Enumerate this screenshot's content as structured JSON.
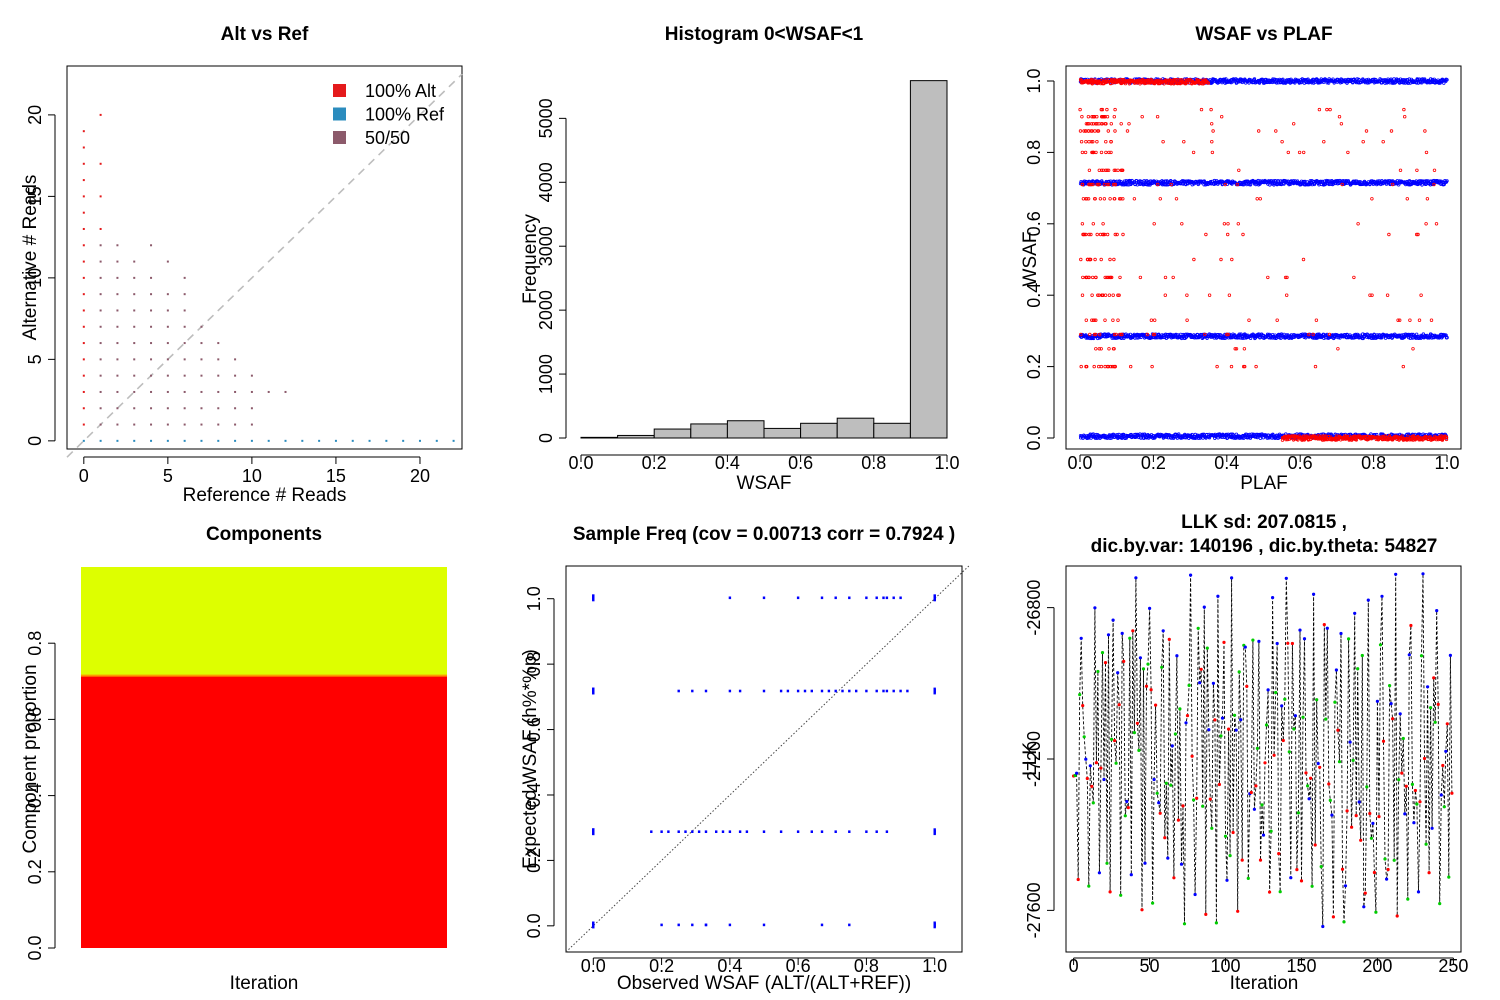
{
  "chart_data": [
    {
      "type": "scatter",
      "title": "Alt vs Ref",
      "xlabel": "Reference # Reads",
      "ylabel": "Alternative # Reads",
      "xlim": [
        -1,
        22.5
      ],
      "ylim": [
        -0.5,
        23
      ],
      "xticks": [
        0,
        5,
        10,
        15,
        20
      ],
      "yticks": [
        0,
        5,
        10,
        15,
        20
      ],
      "diagonal": true,
      "legend_position": "top-right",
      "legend": [
        {
          "label": "100% Alt",
          "color": "#e41a1c"
        },
        {
          "label": "100% Ref",
          "color": "#2b8cbe"
        },
        {
          "label": "50/50",
          "color": "#8c5a6b"
        }
      ],
      "series": [
        {
          "name": "100% Alt",
          "color": "#e41a1c",
          "points": [
            [
              0,
              1
            ],
            [
              0,
              2
            ],
            [
              0,
              3
            ],
            [
              0,
              4
            ],
            [
              0,
              5
            ],
            [
              0,
              6
            ],
            [
              0,
              7
            ],
            [
              0,
              8
            ],
            [
              0,
              9
            ],
            [
              0,
              10
            ],
            [
              0,
              11
            ],
            [
              0,
              12
            ],
            [
              0,
              13
            ],
            [
              0,
              14
            ],
            [
              0,
              15
            ],
            [
              0,
              16
            ],
            [
              0,
              17
            ],
            [
              0,
              18
            ],
            [
              0,
              19
            ],
            [
              1,
              20
            ],
            [
              1,
              17
            ],
            [
              1,
              13
            ],
            [
              1,
              15
            ]
          ]
        },
        {
          "name": "100% Ref",
          "color": "#2b8cbe",
          "points": [
            [
              0,
              0
            ],
            [
              1,
              0
            ],
            [
              2,
              0
            ],
            [
              3,
              0
            ],
            [
              4,
              0
            ],
            [
              5,
              0
            ],
            [
              6,
              0
            ],
            [
              7,
              0
            ],
            [
              8,
              0
            ],
            [
              9,
              0
            ],
            [
              10,
              0
            ],
            [
              11,
              0
            ],
            [
              12,
              0
            ],
            [
              13,
              0
            ],
            [
              14,
              0
            ],
            [
              15,
              0
            ],
            [
              16,
              0
            ],
            [
              17,
              0
            ],
            [
              18,
              0
            ],
            [
              19,
              0
            ],
            [
              20,
              0
            ],
            [
              21,
              0
            ],
            [
              22,
              0
            ]
          ]
        },
        {
          "name": "50/50",
          "color": "#8c5a6b",
          "points": [
            [
              1,
              1
            ],
            [
              1,
              2
            ],
            [
              1,
              3
            ],
            [
              1,
              4
            ],
            [
              1,
              5
            ],
            [
              1,
              6
            ],
            [
              1,
              7
            ],
            [
              1,
              8
            ],
            [
              1,
              9
            ],
            [
              1,
              10
            ],
            [
              1,
              11
            ],
            [
              1,
              12
            ],
            [
              2,
              1
            ],
            [
              2,
              2
            ],
            [
              2,
              3
            ],
            [
              2,
              4
            ],
            [
              2,
              5
            ],
            [
              2,
              6
            ],
            [
              2,
              7
            ],
            [
              2,
              8
            ],
            [
              2,
              9
            ],
            [
              2,
              10
            ],
            [
              2,
              11
            ],
            [
              2,
              12
            ],
            [
              3,
              1
            ],
            [
              3,
              2
            ],
            [
              3,
              3
            ],
            [
              3,
              4
            ],
            [
              3,
              5
            ],
            [
              3,
              6
            ],
            [
              3,
              7
            ],
            [
              3,
              8
            ],
            [
              3,
              9
            ],
            [
              3,
              10
            ],
            [
              3,
              11
            ],
            [
              4,
              1
            ],
            [
              4,
              2
            ],
            [
              4,
              3
            ],
            [
              4,
              4
            ],
            [
              4,
              5
            ],
            [
              4,
              6
            ],
            [
              4,
              7
            ],
            [
              4,
              8
            ],
            [
              4,
              9
            ],
            [
              4,
              10
            ],
            [
              4,
              12
            ],
            [
              5,
              1
            ],
            [
              5,
              2
            ],
            [
              5,
              3
            ],
            [
              5,
              4
            ],
            [
              5,
              5
            ],
            [
              5,
              6
            ],
            [
              5,
              7
            ],
            [
              5,
              8
            ],
            [
              5,
              9
            ],
            [
              5,
              11
            ],
            [
              6,
              1
            ],
            [
              6,
              2
            ],
            [
              6,
              3
            ],
            [
              6,
              4
            ],
            [
              6,
              5
            ],
            [
              6,
              6
            ],
            [
              6,
              7
            ],
            [
              6,
              8
            ],
            [
              6,
              9
            ],
            [
              6,
              10
            ],
            [
              7,
              1
            ],
            [
              7,
              2
            ],
            [
              7,
              3
            ],
            [
              7,
              4
            ],
            [
              7,
              5
            ],
            [
              7,
              6
            ],
            [
              7,
              7
            ],
            [
              8,
              1
            ],
            [
              8,
              2
            ],
            [
              8,
              3
            ],
            [
              8,
              4
            ],
            [
              8,
              5
            ],
            [
              8,
              6
            ],
            [
              9,
              1
            ],
            [
              9,
              2
            ],
            [
              9,
              3
            ],
            [
              9,
              4
            ],
            [
              9,
              5
            ],
            [
              10,
              1
            ],
            [
              10,
              2
            ],
            [
              10,
              3
            ],
            [
              10,
              4
            ],
            [
              11,
              3
            ],
            [
              12,
              3
            ]
          ]
        }
      ]
    },
    {
      "type": "bar",
      "title": "Histogram 0<WSAF<1",
      "xlabel": "WSAF",
      "ylabel": "Frequency",
      "xlim": [
        0,
        1
      ],
      "ylim": [
        0,
        5600
      ],
      "xticks": [
        0.0,
        0.2,
        0.4,
        0.6,
        0.8,
        1.0
      ],
      "yticks": [
        0,
        1000,
        2000,
        3000,
        4000,
        5000
      ],
      "bin_edges": [
        0.0,
        0.1,
        0.2,
        0.3,
        0.4,
        0.5,
        0.6,
        0.7,
        0.8,
        0.9,
        1.0
      ],
      "values": [
        10,
        40,
        140,
        220,
        270,
        150,
        230,
        310,
        230,
        5590
      ],
      "bar_color": "#bebebe"
    },
    {
      "type": "scatter",
      "title": "WSAF vs PLAF",
      "xlabel": "PLAF",
      "ylabel": "WSAF",
      "xlim": [
        0,
        1
      ],
      "ylim": [
        0,
        1
      ],
      "xticks": [
        0.0,
        0.2,
        0.4,
        0.6,
        0.8,
        1.0
      ],
      "yticks": [
        0.0,
        0.2,
        0.4,
        0.6,
        0.8,
        1.0
      ],
      "bands": [
        {
          "y": 1.0,
          "color": "#0000ff",
          "from": 0.0,
          "to": 1.0
        },
        {
          "y": 0.715,
          "color": "#0000ff",
          "from": 0.0,
          "to": 1.0
        },
        {
          "y": 0.285,
          "color": "#0000ff",
          "from": 0.0,
          "to": 1.0
        },
        {
          "y": 0.005,
          "color": "#0000ff",
          "from": 0.0,
          "to": 1.0
        },
        {
          "y": 0.998,
          "color": "#ff0000",
          "from": 0.0,
          "to": 0.35
        },
        {
          "y": 0.0,
          "color": "#ff0000",
          "from": 0.55,
          "to": 1.0
        }
      ],
      "red_levels": [
        0.92,
        0.9,
        0.88,
        0.86,
        0.83,
        0.8,
        0.75,
        0.71,
        0.67,
        0.6,
        0.57,
        0.5,
        0.45,
        0.4,
        0.33,
        0.29,
        0.25,
        0.2
      ],
      "colors": {
        "observed": "#ff0000",
        "expected": "#0000ff"
      }
    },
    {
      "type": "area",
      "title": "Components",
      "xlabel": "Iteration",
      "ylabel": "Component proportion",
      "ylim": [
        0,
        1
      ],
      "yticks": [
        0.0,
        0.2,
        0.4,
        0.6,
        0.8
      ],
      "components": [
        {
          "proportion": 0.715,
          "color": "#ff0000"
        },
        {
          "proportion": 0.285,
          "color": "#ddff00"
        }
      ]
    },
    {
      "type": "scatter",
      "title": "Sample Freq (cov = 0.00713 corr =  0.7924 )",
      "xlabel": "Observed WSAF (ALT/(ALT+REF))",
      "ylabel": "Expected WSAF (h%*%p)",
      "xlim": [
        -0.08,
        1.08
      ],
      "ylim": [
        -0.08,
        1.1
      ],
      "xticks": [
        0.0,
        0.2,
        0.4,
        0.6,
        0.8,
        1.0
      ],
      "yticks": [
        0.0,
        0.2,
        0.4,
        0.6,
        0.8,
        1.0
      ],
      "diagonal": true,
      "color": "#0000ff",
      "rows": [
        {
          "y": 1.0,
          "x": [
            0.0,
            0.0,
            0.4,
            0.5,
            0.6,
            0.67,
            0.71,
            0.75,
            0.8,
            0.83,
            0.85,
            0.86,
            0.88,
            0.9,
            1.0,
            1.0
          ]
        },
        {
          "y": 0.715,
          "x": [
            0.0,
            0.0,
            0.25,
            0.29,
            0.33,
            0.4,
            0.43,
            0.5,
            0.55,
            0.57,
            0.6,
            0.62,
            0.64,
            0.67,
            0.69,
            0.71,
            0.73,
            0.75,
            0.77,
            0.8,
            0.83,
            0.85,
            0.86,
            0.88,
            0.9,
            0.92,
            1.0
          ]
        },
        {
          "y": 0.285,
          "x": [
            0.0,
            0.0,
            0.17,
            0.2,
            0.22,
            0.25,
            0.27,
            0.29,
            0.31,
            0.33,
            0.36,
            0.38,
            0.4,
            0.43,
            0.45,
            0.5,
            0.55,
            0.6,
            0.64,
            0.67,
            0.71,
            0.75,
            0.8,
            0.83,
            0.86,
            1.0
          ]
        },
        {
          "y": 0.0,
          "x": [
            0.0,
            0.0,
            0.2,
            0.25,
            0.29,
            0.33,
            0.33,
            0.4,
            0.5,
            0.67,
            0.75,
            1.0
          ]
        }
      ]
    },
    {
      "type": "line",
      "title": "LLK sd: 207.0815 ,",
      "subtitle": "dic.by.var:  140196 , dic.by.theta:  54827",
      "xlabel": "Iteration",
      "ylabel": "LLK",
      "xlim": [
        -5,
        255
      ],
      "ylim": [
        -27710,
        -26690
      ],
      "xticks": [
        0,
        50,
        100,
        150,
        200,
        250
      ],
      "yticks": [
        -27600,
        -27200,
        -26800
      ],
      "line_color": "#000000",
      "point_colors": [
        "#ff0000",
        "#00cc00",
        "#0000ff"
      ],
      "n_points": 250,
      "llk_range": [
        -27650,
        -26710
      ]
    }
  ]
}
